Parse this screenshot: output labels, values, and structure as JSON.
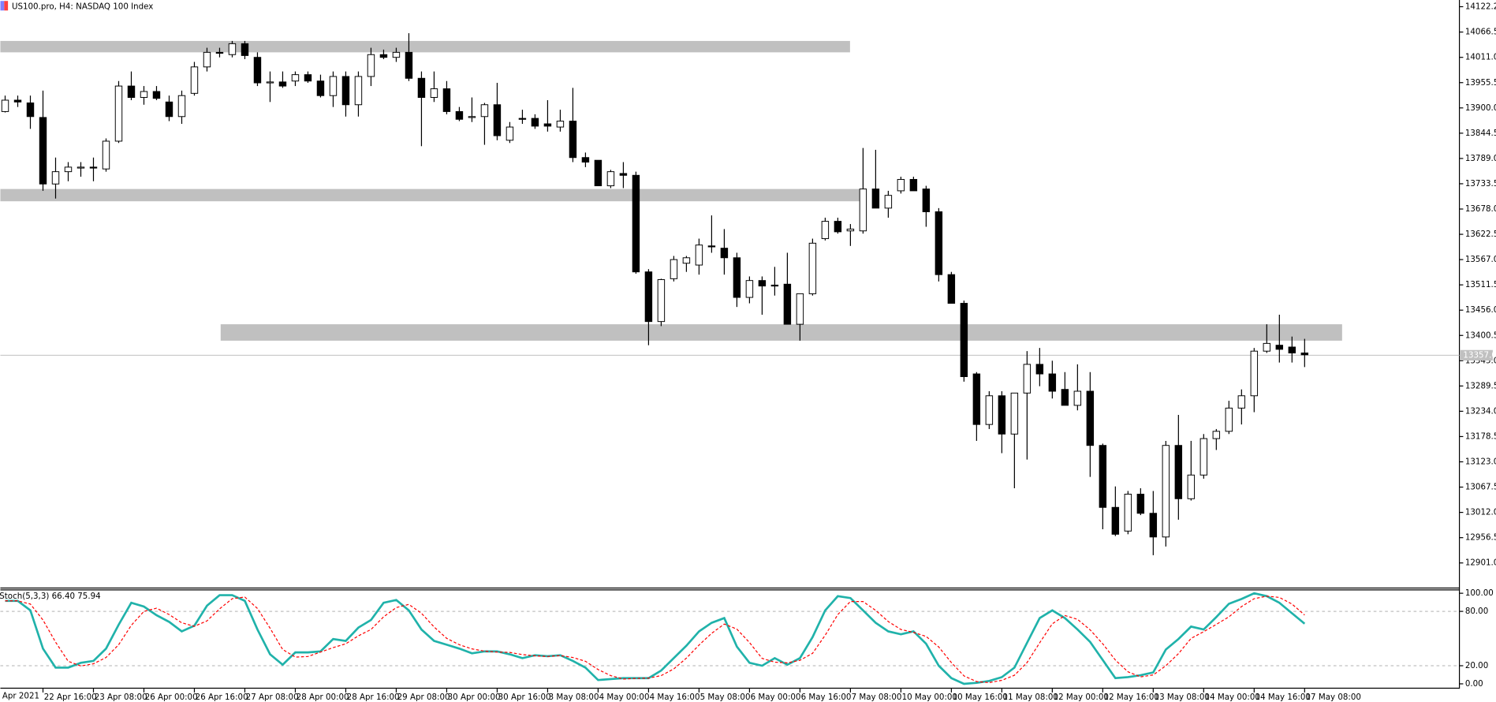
{
  "chart_data": [
    {
      "type": "candlestick",
      "title": "US100.pro, H4:  NASDAQ 100 Index",
      "x_start_label": "Apr 2021",
      "categories": [
        null,
        null,
        null,
        "22 Apr 16:00",
        null,
        null,
        null,
        "23 Apr 08:00",
        null,
        null,
        null,
        "26 Apr 00:00",
        null,
        null,
        null,
        "26 Apr 16:00",
        null,
        null,
        null,
        "27 Apr 08:00",
        null,
        null,
        null,
        "28 Apr 00:00",
        null,
        null,
        null,
        "28 Apr 16:00",
        null,
        null,
        null,
        "29 Apr 08:00",
        null,
        null,
        null,
        "30 Apr 00:00",
        null,
        null,
        null,
        "30 Apr 16:00",
        null,
        null,
        null,
        "3 May 08:00",
        null,
        null,
        null,
        "4 May 00:00",
        null,
        null,
        null,
        "4 May 16:00",
        null,
        null,
        null,
        "5 May 08:00",
        null,
        null,
        null,
        "6 May 00:00",
        null,
        null,
        null,
        "6 May 16:00",
        null,
        null,
        null,
        "7 May 08:00",
        null,
        null,
        null,
        "10 May 00:00",
        null,
        null,
        null,
        "10 May 16:00",
        null,
        null,
        null,
        "11 May 08:00",
        null,
        null,
        null,
        "12 May 00:00",
        null,
        null,
        null,
        "12 May 16:00",
        null,
        null,
        null,
        "13 May 08:00",
        null,
        null,
        null,
        "14 May 00:00",
        null,
        null,
        null,
        "14 May 16:00",
        null,
        null,
        null,
        "17 May 08:00"
      ],
      "open": [
        13892,
        13917,
        13911,
        13879,
        13733,
        13760,
        13768,
        13770,
        13766,
        13827,
        13948,
        13923,
        13936,
        13913,
        13881,
        13932,
        13990,
        14022,
        14017,
        14041,
        14011,
        13955,
        13957,
        13959,
        13973,
        13959,
        13927,
        13969,
        13907,
        13969,
        14017,
        14011,
        14022,
        13965,
        13923,
        13942,
        13892,
        13879,
        13881,
        13907,
        13829,
        13877,
        13877,
        13865,
        13858,
        13871,
        13791,
        13785,
        13729,
        13756,
        13752,
        13540,
        13431,
        13525,
        13559,
        13555,
        13597,
        13592,
        13571,
        13484,
        13521,
        13511,
        13513,
        13425,
        13492,
        13613,
        13651,
        13630,
        13630,
        13722,
        13680,
        13718,
        13743,
        13722,
        13672,
        13534,
        13471,
        13316,
        13205,
        13268,
        13184,
        13274,
        13337,
        13316,
        13282,
        13247,
        13278,
        13159,
        13023,
        12971,
        13052,
        13010,
        12958,
        13159,
        13042,
        13094,
        13174,
        13190,
        13241,
        13268,
        13366,
        13379,
        13375,
        13362
      ],
      "high": [
        13927,
        13927,
        13927,
        13938,
        13791,
        13781,
        13781,
        13791,
        13833,
        13959,
        13980,
        13948,
        13948,
        13927,
        13938,
        14001,
        14032,
        14032,
        14047,
        14047,
        14022,
        13980,
        13980,
        13980,
        13980,
        13973,
        13980,
        13980,
        13980,
        14032,
        14028,
        14032,
        14064,
        13980,
        13980,
        13959,
        13902,
        13923,
        13911,
        13955,
        13869,
        13896,
        13886,
        13917,
        13896,
        13944,
        13802,
        13785,
        13764,
        13781,
        13760,
        13546,
        13525,
        13575,
        13575,
        13613,
        13664,
        13634,
        13582,
        13530,
        13530,
        13551,
        13582,
        13492,
        13613,
        13659,
        13659,
        13645,
        13812,
        13808,
        13718,
        13749,
        13749,
        13729,
        13680,
        13540,
        13477,
        13320,
        13278,
        13278,
        13274,
        13366,
        13373,
        13345,
        13320,
        13337,
        13320,
        13163,
        13069,
        13059,
        13065,
        13059,
        13169,
        13226,
        13169,
        13184,
        13195,
        13257,
        13282,
        13373,
        13425,
        13446,
        13398,
        13393
      ],
      "low": [
        13890,
        13902,
        13854,
        13718,
        13701,
        13739,
        13749,
        13739,
        13760,
        13823,
        13917,
        13907,
        13917,
        13871,
        13865,
        13927,
        13980,
        14011,
        14011,
        14007,
        13948,
        13913,
        13944,
        13948,
        13955,
        13923,
        13902,
        13881,
        13881,
        13948,
        14007,
        14001,
        13959,
        13816,
        13913,
        13886,
        13871,
        13869,
        13819,
        13829,
        13823,
        13865,
        13854,
        13848,
        13848,
        13781,
        13770,
        13729,
        13724,
        13724,
        13536,
        13379,
        13421,
        13519,
        13540,
        13534,
        13582,
        13534,
        13463,
        13471,
        13446,
        13488,
        13425,
        13389,
        13488,
        13609,
        13624,
        13597,
        13624,
        13680,
        13659,
        13712,
        13718,
        13639,
        13519,
        13471,
        13299,
        13169,
        13195,
        13142,
        13065,
        13128,
        13289,
        13262,
        13247,
        13236,
        13090,
        12975,
        12960,
        12964,
        13006,
        12918,
        12937,
        12996,
        13038,
        13086,
        13149,
        13184,
        13205,
        13232,
        13362,
        13341,
        13341,
        13331
      ],
      "close": [
        13917,
        13913,
        13881,
        13733,
        13760,
        13770,
        13770,
        13768,
        13827,
        13948,
        13923,
        13936,
        13921,
        13881,
        13927,
        13990,
        14022,
        14020,
        14041,
        14015,
        13955,
        13957,
        13948,
        13973,
        13959,
        13927,
        13969,
        13907,
        13969,
        14017,
        14011,
        14022,
        13965,
        13923,
        13942,
        13892,
        13875,
        13881,
        13907,
        13839,
        13858,
        13875,
        13860,
        13860,
        13871,
        13791,
        13781,
        13729,
        13760,
        13752,
        13540,
        13431,
        13523,
        13567,
        13571,
        13599,
        13595,
        13571,
        13484,
        13521,
        13509,
        13509,
        13425,
        13492,
        13603,
        13651,
        13628,
        13634,
        13722,
        13680,
        13708,
        13743,
        13718,
        13672,
        13534,
        13471,
        13310,
        13205,
        13268,
        13184,
        13274,
        13337,
        13316,
        13278,
        13247,
        13278,
        13159,
        13023,
        12964,
        13052,
        13010,
        12958,
        13159,
        13042,
        13094,
        13174,
        13190,
        13241,
        13268,
        13366,
        13383,
        13370,
        13362,
        13358
      ],
      "up_color": "#ffffff",
      "down_color": "#000000",
      "ylim": [
        12847.0,
        14136.9
      ],
      "yticks": [
        {
          "value": 14122.2,
          "label": "14122.2"
        },
        {
          "value": 14066.5,
          "label": "14066.5"
        },
        {
          "value": 14011.0,
          "label": "14011.0"
        },
        {
          "value": 13955.5,
          "label": "13955.5"
        },
        {
          "value": 13900.0,
          "label": "13900.0"
        },
        {
          "value": 13844.5,
          "label": "13844.5"
        },
        {
          "value": 13789.0,
          "label": "13789.0"
        },
        {
          "value": 13733.5,
          "label": "13733.5"
        },
        {
          "value": 13678.0,
          "label": "13678.0"
        },
        {
          "value": 13622.5,
          "label": "13622.5"
        },
        {
          "value": 13567.0,
          "label": "13567.0"
        },
        {
          "value": 13511.5,
          "label": "13511.5"
        },
        {
          "value": 13456.0,
          "label": "13456.0"
        },
        {
          "value": 13400.5,
          "label": "13400.5"
        },
        {
          "value": 13345.0,
          "label": "13345.0"
        },
        {
          "value": 13289.5,
          "label": "13289.5"
        },
        {
          "value": 13234.0,
          "label": "13234.0"
        },
        {
          "value": 13178.5,
          "label": "13178.5"
        },
        {
          "value": 13123.0,
          "label": "13123.0"
        },
        {
          "value": 13067.5,
          "label": "13067.5"
        },
        {
          "value": 13012.0,
          "label": "13012.0"
        },
        {
          "value": 12956.5,
          "label": "12956.5"
        },
        {
          "value": 12901.0,
          "label": "12901.0"
        }
      ],
      "zones": [
        {
          "low": 14022,
          "high": 14047
        },
        {
          "low": 13695,
          "high": 13722
        },
        {
          "low": 13389,
          "high": 13425
        }
      ],
      "zone_color": "#c0c0c0",
      "current_price": {
        "value": 13357.0,
        "label": "13357.0"
      }
    },
    {
      "type": "line",
      "title": "Stoch(5,3,3) 66.40 75.94",
      "series": [
        {
          "color": "#20b2aa",
          "values": [
            91.6,
            91.6,
            81.1,
            38.9,
            17.9,
            17.9,
            23.2,
            25.3,
            38.9,
            65.3,
            89.5,
            85.3,
            75.8,
            68.4,
            57.9,
            64.2,
            86.3,
            97.9,
            97.9,
            91.6,
            60.0,
            32.6,
            21.1,
            34.7,
            34.7,
            35.8,
            49.5,
            47.4,
            62.1,
            70.5,
            89.5,
            92.6,
            81.1,
            60.0,
            47.4,
            43.2,
            38.9,
            33.7,
            35.8,
            35.8,
            32.6,
            28.4,
            31.6,
            30.5,
            31.6,
            25.3,
            17.9,
            4.2,
            5.3,
            6.3,
            6.3,
            6.3,
            14.7,
            28.4,
            42.1,
            57.9,
            67.4,
            72.6,
            41.1,
            23.2,
            20.0,
            28.4,
            21.1,
            28.4,
            51.6,
            81.1,
            96.8,
            94.7,
            81.1,
            67.4,
            57.9,
            54.7,
            57.9,
            44.2,
            20.0,
            6.3,
            0.0,
            1.1,
            3.2,
            7.4,
            17.9,
            45.3,
            72.6,
            81.1,
            72.6,
            60.0,
            46.3,
            26.3,
            6.3,
            7.4,
            9.5,
            12.6,
            37.9,
            49.5,
            63.2,
            60.0,
            73.7,
            88.4,
            93.7,
            100,
            96.8,
            89.5,
            77.9,
            66.4
          ]
        },
        {
          "color": "#ff0000",
          "dashed": true,
          "values": [
            91.6,
            91.6,
            88.1,
            70.5,
            46.0,
            24.9,
            19.7,
            22.1,
            29.1,
            43.2,
            64.6,
            80.0,
            83.5,
            76.5,
            67.4,
            63.5,
            69.5,
            82.8,
            94.0,
            95.8,
            83.2,
            61.4,
            37.9,
            29.5,
            30.2,
            35.1,
            40.0,
            44.2,
            53.0,
            60.0,
            74.0,
            84.2,
            87.7,
            77.9,
            62.8,
            50.2,
            43.2,
            38.6,
            36.1,
            35.1,
            34.7,
            32.3,
            30.9,
            30.2,
            31.2,
            29.1,
            24.9,
            15.8,
            9.1,
            5.3,
            6.0,
            6.3,
            9.1,
            16.5,
            28.4,
            42.8,
            55.8,
            66.0,
            60.4,
            45.6,
            28.1,
            23.9,
            23.2,
            26.0,
            33.7,
            53.7,
            76.5,
            90.9,
            90.9,
            81.1,
            68.8,
            60.0,
            56.8,
            52.3,
            40.7,
            23.5,
            8.8,
            2.5,
            1.4,
            3.9,
            9.5,
            23.5,
            45.3,
            66.3,
            75.4,
            71.2,
            59.6,
            44.2,
            26.3,
            13.3,
            7.7,
            9.8,
            20.0,
            33.3,
            50.2,
            57.6,
            65.6,
            74.0,
            85.3,
            94.0,
            96.8,
            95.4,
            88.1,
            75.94
          ]
        }
      ],
      "ylim": [
        -3.2,
        104.2
      ],
      "yticks": [
        {
          "value": 100,
          "label": "100.00"
        },
        {
          "value": 80,
          "label": "80.00"
        },
        {
          "value": 20,
          "label": "20.00"
        },
        {
          "value": 0,
          "label": "0.00"
        }
      ],
      "levels": [
        80,
        20
      ]
    }
  ]
}
